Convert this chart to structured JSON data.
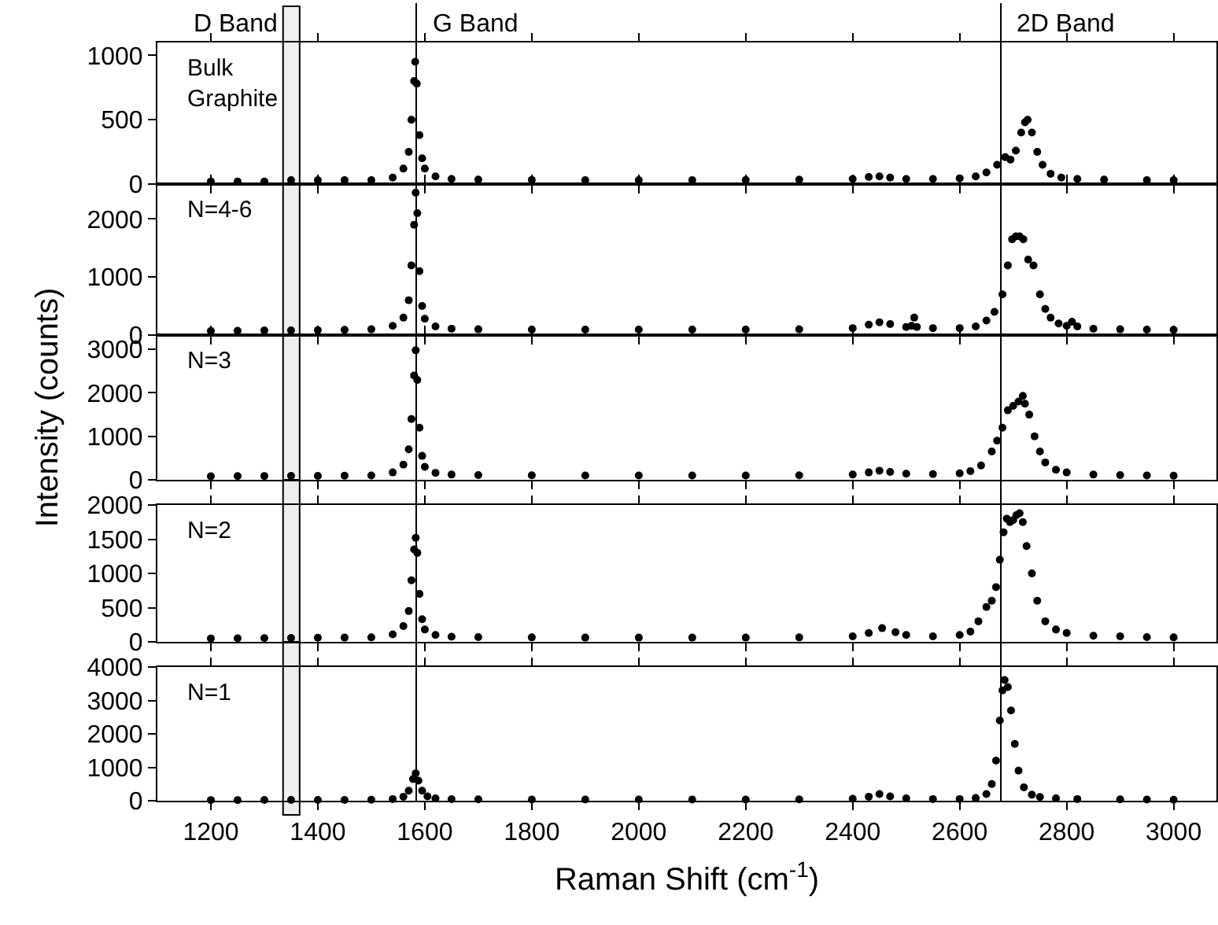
{
  "chart_data": [
    {
      "type": "scatter",
      "marker": "circle",
      "tick_labels": "y",
      "annotations": [
        "Bulk\nGraphite"
      ],
      "x": [
        1200,
        1250,
        1300,
        1350,
        1400,
        1450,
        1500,
        1540,
        1560,
        1570,
        1575,
        1580,
        1582,
        1585,
        1590,
        1595,
        1600,
        1620,
        1650,
        1700,
        1800,
        1900,
        2000,
        2100,
        2200,
        2300,
        2400,
        2430,
        2450,
        2470,
        2500,
        2550,
        2600,
        2630,
        2650,
        2670,
        2685,
        2695,
        2705,
        2715,
        2722,
        2727,
        2735,
        2745,
        2755,
        2770,
        2790,
        2820,
        2870,
        2950,
        3000
      ],
      "series": [
        {
          "color": "#000000",
          "values": [
            20,
            20,
            20,
            30,
            30,
            30,
            30,
            50,
            120,
            250,
            500,
            800,
            950,
            780,
            380,
            200,
            120,
            60,
            40,
            35,
            32,
            30,
            30,
            30,
            32,
            35,
            40,
            55,
            60,
            50,
            40,
            40,
            45,
            60,
            90,
            150,
            210,
            190,
            260,
            400,
            480,
            500,
            400,
            250,
            150,
            80,
            50,
            40,
            35,
            30,
            30
          ]
        }
      ],
      "xlim": [
        1100,
        3080
      ],
      "xticks": [
        1200,
        1400,
        1600,
        1800,
        2000,
        2200,
        2400,
        2600,
        2800,
        3000
      ],
      "ylim": [
        0,
        1100
      ],
      "yticks": [
        0,
        500,
        1000
      ],
      "ref_lines": [
        {
          "axis": "x",
          "value": 1584,
          "label": "G Band",
          "color": "#000000"
        },
        {
          "axis": "x",
          "value": 2677,
          "label": "2D Band",
          "color": "#000000"
        }
      ],
      "bands": [
        {
          "axis": "x",
          "from": 1335,
          "to": 1366,
          "label": "D Band",
          "color": "#f0f0f0"
        }
      ]
    },
    {
      "type": "scatter",
      "marker": "circle",
      "tick_labels": "y",
      "annotations": [
        "N=4-6"
      ],
      "x": [
        1200,
        1250,
        1300,
        1350,
        1400,
        1450,
        1500,
        1540,
        1560,
        1570,
        1575,
        1580,
        1583,
        1586,
        1590,
        1595,
        1600,
        1620,
        1650,
        1700,
        1800,
        1900,
        2000,
        2100,
        2200,
        2300,
        2400,
        2430,
        2450,
        2470,
        2500,
        2510,
        2515,
        2520,
        2550,
        2600,
        2630,
        2650,
        2665,
        2680,
        2690,
        2698,
        2705,
        2712,
        2719,
        2728,
        2738,
        2750,
        2760,
        2770,
        2785,
        2800,
        2810,
        2820,
        2850,
        2900,
        2950,
        3000
      ],
      "series": [
        {
          "color": "#000000",
          "values": [
            70,
            75,
            80,
            82,
            85,
            90,
            100,
            160,
            300,
            600,
            1200,
            1900,
            2450,
            2100,
            1100,
            500,
            280,
            150,
            110,
            100,
            95,
            95,
            95,
            95,
            95,
            100,
            120,
            180,
            220,
            190,
            140,
            160,
            300,
            140,
            120,
            120,
            150,
            250,
            400,
            700,
            1200,
            1650,
            1700,
            1700,
            1650,
            1300,
            1200,
            700,
            450,
            300,
            200,
            160,
            230,
            150,
            110,
            100,
            95,
            90
          ]
        }
      ],
      "xlim": [
        1100,
        3080
      ],
      "xticks": [
        1200,
        1400,
        1600,
        1800,
        2000,
        2200,
        2400,
        2600,
        2800,
        3000
      ],
      "ylim": [
        0,
        2600
      ],
      "yticks": [
        0,
        1000,
        2000
      ],
      "ref_lines": [
        {
          "axis": "x",
          "value": 1584,
          "color": "#000000"
        },
        {
          "axis": "x",
          "value": 2677,
          "color": "#000000"
        }
      ],
      "bands": [
        {
          "axis": "x",
          "from": 1335,
          "to": 1366
        }
      ]
    },
    {
      "type": "scatter",
      "marker": "circle",
      "tick_labels": "y",
      "ylabel": "Intensity (counts)",
      "annotations": [
        "N=3"
      ],
      "x": [
        1200,
        1250,
        1300,
        1350,
        1400,
        1450,
        1500,
        1540,
        1560,
        1570,
        1575,
        1580,
        1583,
        1586,
        1590,
        1595,
        1600,
        1620,
        1650,
        1700,
        1800,
        1900,
        2000,
        2100,
        2200,
        2300,
        2400,
        2430,
        2450,
        2470,
        2500,
        2550,
        2600,
        2620,
        2640,
        2660,
        2670,
        2680,
        2690,
        2700,
        2710,
        2718,
        2722,
        2730,
        2740,
        2750,
        2760,
        2780,
        2800,
        2850,
        2900,
        2950,
        3000
      ],
      "series": [
        {
          "color": "#000000",
          "values": [
            80,
            85,
            88,
            90,
            92,
            95,
            100,
            170,
            350,
            700,
            1400,
            2400,
            2980,
            2300,
            1200,
            550,
            300,
            160,
            120,
            110,
            105,
            100,
            100,
            100,
            100,
            105,
            120,
            170,
            210,
            180,
            140,
            130,
            150,
            200,
            330,
            650,
            900,
            1200,
            1600,
            1700,
            1800,
            1930,
            1750,
            1500,
            1000,
            650,
            400,
            230,
            170,
            120,
            110,
            100,
            95
          ]
        }
      ],
      "xlim": [
        1100,
        3080
      ],
      "xticks": [
        1200,
        1400,
        1600,
        1800,
        2000,
        2200,
        2400,
        2600,
        2800,
        3000
      ],
      "ylim": [
        0,
        3330
      ],
      "yticks": [
        0,
        1000,
        2000,
        3000
      ],
      "ref_lines": [
        {
          "axis": "x",
          "value": 1584,
          "color": "#000000"
        },
        {
          "axis": "x",
          "value": 2677,
          "color": "#000000"
        }
      ],
      "bands": [
        {
          "axis": "x",
          "from": 1335,
          "to": 1366
        }
      ]
    },
    {
      "type": "scatter",
      "marker": "circle",
      "tick_labels": "y",
      "annotations": [
        "N=2"
      ],
      "x": [
        1200,
        1250,
        1300,
        1350,
        1400,
        1450,
        1500,
        1540,
        1560,
        1570,
        1575,
        1580,
        1583,
        1586,
        1590,
        1595,
        1600,
        1620,
        1650,
        1700,
        1800,
        1900,
        2000,
        2100,
        2200,
        2300,
        2400,
        2430,
        2455,
        2480,
        2500,
        2550,
        2600,
        2620,
        2635,
        2650,
        2660,
        2668,
        2675,
        2682,
        2688,
        2694,
        2700,
        2706,
        2712,
        2718,
        2725,
        2735,
        2745,
        2760,
        2780,
        2800,
        2850,
        2900,
        2950,
        3000
      ],
      "series": [
        {
          "color": "#000000",
          "values": [
            50,
            52,
            55,
            58,
            60,
            62,
            65,
            110,
            230,
            450,
            900,
            1350,
            1520,
            1300,
            700,
            330,
            180,
            100,
            75,
            70,
            65,
            62,
            62,
            62,
            62,
            65,
            80,
            130,
            200,
            140,
            100,
            80,
            100,
            150,
            300,
            510,
            600,
            800,
            1200,
            1600,
            1800,
            1750,
            1780,
            1850,
            1880,
            1750,
            1400,
            1000,
            600,
            300,
            180,
            130,
            90,
            80,
            70,
            65
          ]
        }
      ],
      "xlim": [
        1100,
        3080
      ],
      "xticks": [
        1200,
        1400,
        1600,
        1800,
        2000,
        2200,
        2400,
        2600,
        2800,
        3000
      ],
      "ylim": [
        0,
        2000
      ],
      "yticks": [
        0,
        500,
        1000,
        1500,
        2000
      ],
      "ref_lines": [
        {
          "axis": "x",
          "value": 1584,
          "color": "#000000"
        },
        {
          "axis": "x",
          "value": 2677,
          "color": "#000000"
        }
      ],
      "bands": [
        {
          "axis": "x",
          "from": 1335,
          "to": 1366
        }
      ]
    },
    {
      "type": "scatter",
      "marker": "circle",
      "xlabel": "Raman Shift (cm$^{-1}$)",
      "annotations": [
        "N=1"
      ],
      "x": [
        1200,
        1250,
        1300,
        1350,
        1400,
        1450,
        1500,
        1540,
        1560,
        1570,
        1578,
        1583,
        1588,
        1595,
        1605,
        1620,
        1650,
        1700,
        1800,
        1900,
        2000,
        2100,
        2200,
        2300,
        2400,
        2430,
        2450,
        2470,
        2500,
        2550,
        2600,
        2630,
        2650,
        2660,
        2668,
        2675,
        2680,
        2684,
        2690,
        2696,
        2703,
        2710,
        2720,
        2735,
        2750,
        2780,
        2820,
        2900,
        2950,
        3000
      ],
      "series": [
        {
          "color": "#000000",
          "values": [
            20,
            20,
            22,
            22,
            25,
            25,
            28,
            50,
            120,
            300,
            650,
            820,
            600,
            300,
            130,
            70,
            45,
            40,
            35,
            35,
            35,
            35,
            35,
            40,
            60,
            120,
            200,
            130,
            70,
            50,
            50,
            80,
            200,
            500,
            1200,
            2400,
            3300,
            3610,
            3400,
            2700,
            1700,
            900,
            400,
            180,
            110,
            70,
            50,
            40,
            35,
            30
          ]
        }
      ],
      "xlim": [
        1100,
        3080
      ],
      "xticks": [
        1200,
        1400,
        1600,
        1800,
        2000,
        2200,
        2400,
        2600,
        2800,
        3000
      ],
      "ylim": [
        0,
        4000
      ],
      "yticks": [
        0,
        1000,
        2000,
        3000,
        4000
      ],
      "ref_lines": [
        {
          "axis": "x",
          "value": 1584,
          "color": "#000000"
        },
        {
          "axis": "x",
          "value": 2677,
          "color": "#000000"
        }
      ],
      "bands": [
        {
          "axis": "x",
          "from": 1335,
          "to": 1366
        }
      ]
    }
  ]
}
